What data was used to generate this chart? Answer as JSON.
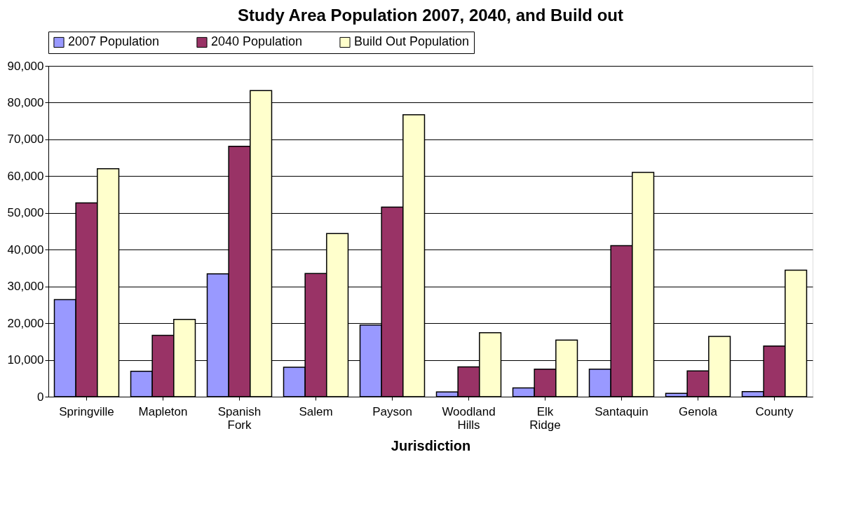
{
  "chart_data": {
    "type": "bar",
    "title": "Study Area Population 2007, 2040, and Build out",
    "xlabel": "Jurisdiction",
    "categories": [
      "Springville",
      "Mapleton",
      "Spanish Fork",
      "Salem",
      "Payson",
      "Woodland Hills",
      "Elk Ridge",
      "Santaquin",
      "Genola",
      "County"
    ],
    "series": [
      {
        "name": "2007 Population",
        "color": "#9999ff",
        "values": [
          26400,
          6900,
          33400,
          8000,
          19500,
          1300,
          2400,
          7500,
          900,
          1400
        ]
      },
      {
        "name": "2040 Population",
        "color": "#993366",
        "values": [
          52700,
          16700,
          68100,
          33500,
          51600,
          8100,
          7500,
          41100,
          7000,
          13800
        ]
      },
      {
        "name": "Build Out Population",
        "color": "#ffffcc",
        "values": [
          62000,
          21000,
          83300,
          44400,
          76700,
          17400,
          15400,
          61000,
          16400,
          34400
        ]
      }
    ],
    "ylim": [
      0,
      90000
    ],
    "yticks": [
      {
        "value": 0,
        "label": "0"
      },
      {
        "value": 10000,
        "label": "10,000"
      },
      {
        "value": 20000,
        "label": "20,000"
      },
      {
        "value": 30000,
        "label": "30,000"
      },
      {
        "value": 40000,
        "label": "40,000"
      },
      {
        "value": 50000,
        "label": "50,000"
      },
      {
        "value": 60000,
        "label": "60,000"
      },
      {
        "value": 70000,
        "label": "70,000"
      },
      {
        "value": 80000,
        "label": "80,000"
      },
      {
        "value": 90000,
        "label": "90,000"
      }
    ],
    "grid": "y",
    "legend": "top"
  }
}
